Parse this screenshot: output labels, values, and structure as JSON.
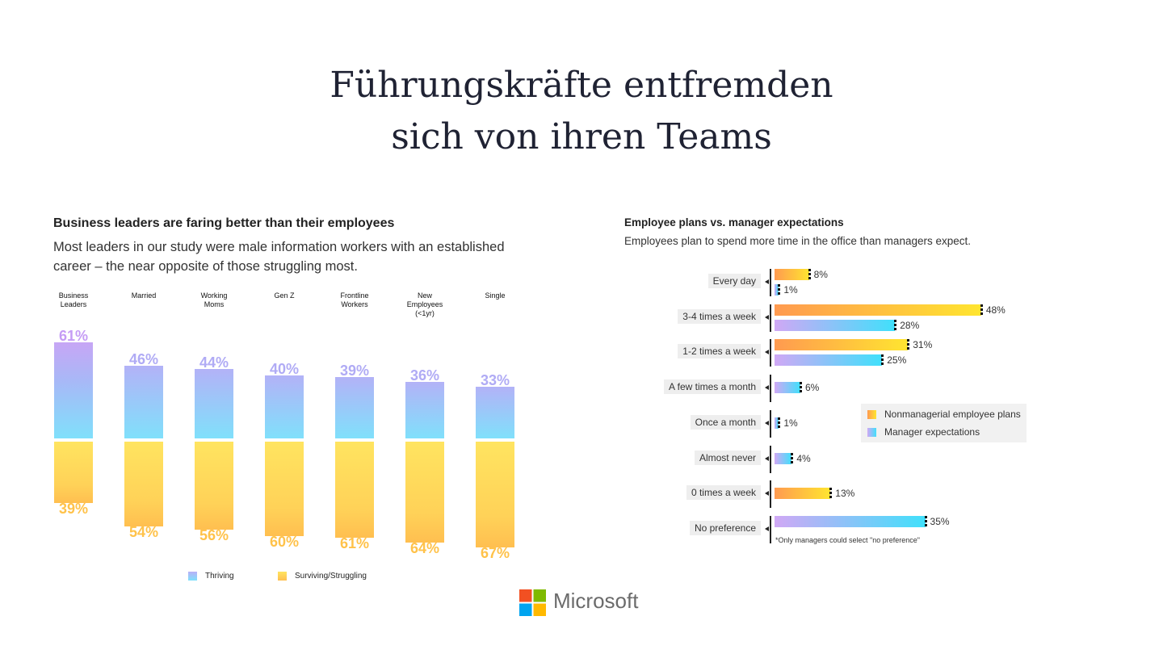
{
  "title_line1": "Führungskräfte entfremden",
  "title_line2": "sich von ihren Teams",
  "brand": "Microsoft",
  "chart_data": [
    {
      "type": "bar",
      "title": "Business leaders are faring better than their employees",
      "subtitle": "Most leaders in our study were male information workers with an established career – the near opposite of those struggling most.",
      "categories": [
        "Business Leaders",
        "Married",
        "Working Moms",
        "Gen Z",
        "Frontline Workers",
        "New Employees (<1yr)",
        "Single"
      ],
      "category_lines": [
        [
          "Business",
          "Leaders"
        ],
        [
          "Married"
        ],
        [
          "Working",
          "Moms"
        ],
        [
          "Gen Z"
        ],
        [
          "Frontline",
          "Workers"
        ],
        [
          "New",
          "Employees",
          "(<1yr)"
        ],
        [
          "Single"
        ]
      ],
      "series": [
        {
          "name": "Thriving",
          "values": [
            61,
            46,
            44,
            40,
            39,
            36,
            33
          ],
          "colors": [
            "#c7a6f5",
            "#80e0fb"
          ]
        },
        {
          "name": "Surviving/Struggling",
          "values": [
            39,
            54,
            56,
            60,
            61,
            64,
            67
          ],
          "colors": [
            "#ffe460",
            "#ffbf50"
          ]
        }
      ],
      "unit": "%",
      "legend": "bottom"
    },
    {
      "type": "bar",
      "orientation": "horizontal",
      "title": "Employee plans vs. manager expectations",
      "subtitle": "Employees plan to spend more time in the office than managers expect.",
      "categories": [
        "Every day",
        "3-4 times a week",
        "1-2 times a week",
        "A few times a month",
        "Once a month",
        "Almost never",
        "0 times a week",
        "No preference"
      ],
      "series": [
        {
          "name": "Nonmanagerial employee plans",
          "values": [
            8,
            48,
            31,
            null,
            null,
            null,
            13,
            null
          ],
          "colors": [
            "#ff9a50",
            "#ffe530"
          ]
        },
        {
          "name": "Manager expectations",
          "values": [
            1,
            28,
            25,
            6,
            1,
            4,
            null,
            35
          ],
          "colors": [
            "#d0a8f5",
            "#40e0fb"
          ]
        }
      ],
      "unit": "%",
      "note": "*Only managers could select \"no preference\"",
      "legend": "right"
    }
  ]
}
